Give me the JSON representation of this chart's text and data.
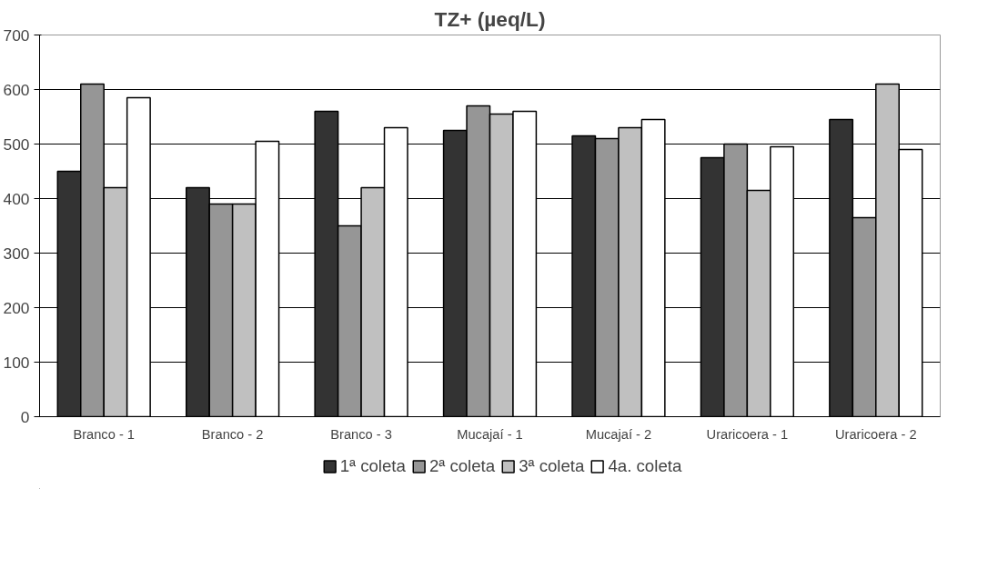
{
  "chart_data": {
    "type": "bar",
    "title": "TZ+ (µeq/L)",
    "categories": [
      "Branco - 1",
      "Branco - 2",
      "Branco - 3",
      "Mucajaí - 1",
      "Mucajaí - 2",
      "Uraricoera - 1",
      "Uraricoera - 2"
    ],
    "series": [
      {
        "name": "1ª coleta",
        "color": "#333333",
        "values": [
          450,
          420,
          560,
          525,
          515,
          475,
          545
        ]
      },
      {
        "name": "2ª coleta",
        "color": "#969696",
        "values": [
          610,
          390,
          350,
          570,
          510,
          500,
          365
        ]
      },
      {
        "name": "3ª coleta",
        "color": "#c0c0c0",
        "values": [
          420,
          390,
          420,
          555,
          530,
          415,
          610
        ]
      },
      {
        "name": "4a. coleta",
        "color": "#ffffff",
        "values": [
          585,
          505,
          530,
          560,
          545,
          495,
          490
        ]
      }
    ],
    "ylim": [
      0,
      700
    ],
    "yticks": [
      0,
      100,
      200,
      300,
      400,
      500,
      600,
      700
    ],
    "grid": "y",
    "legend": "bottom"
  }
}
